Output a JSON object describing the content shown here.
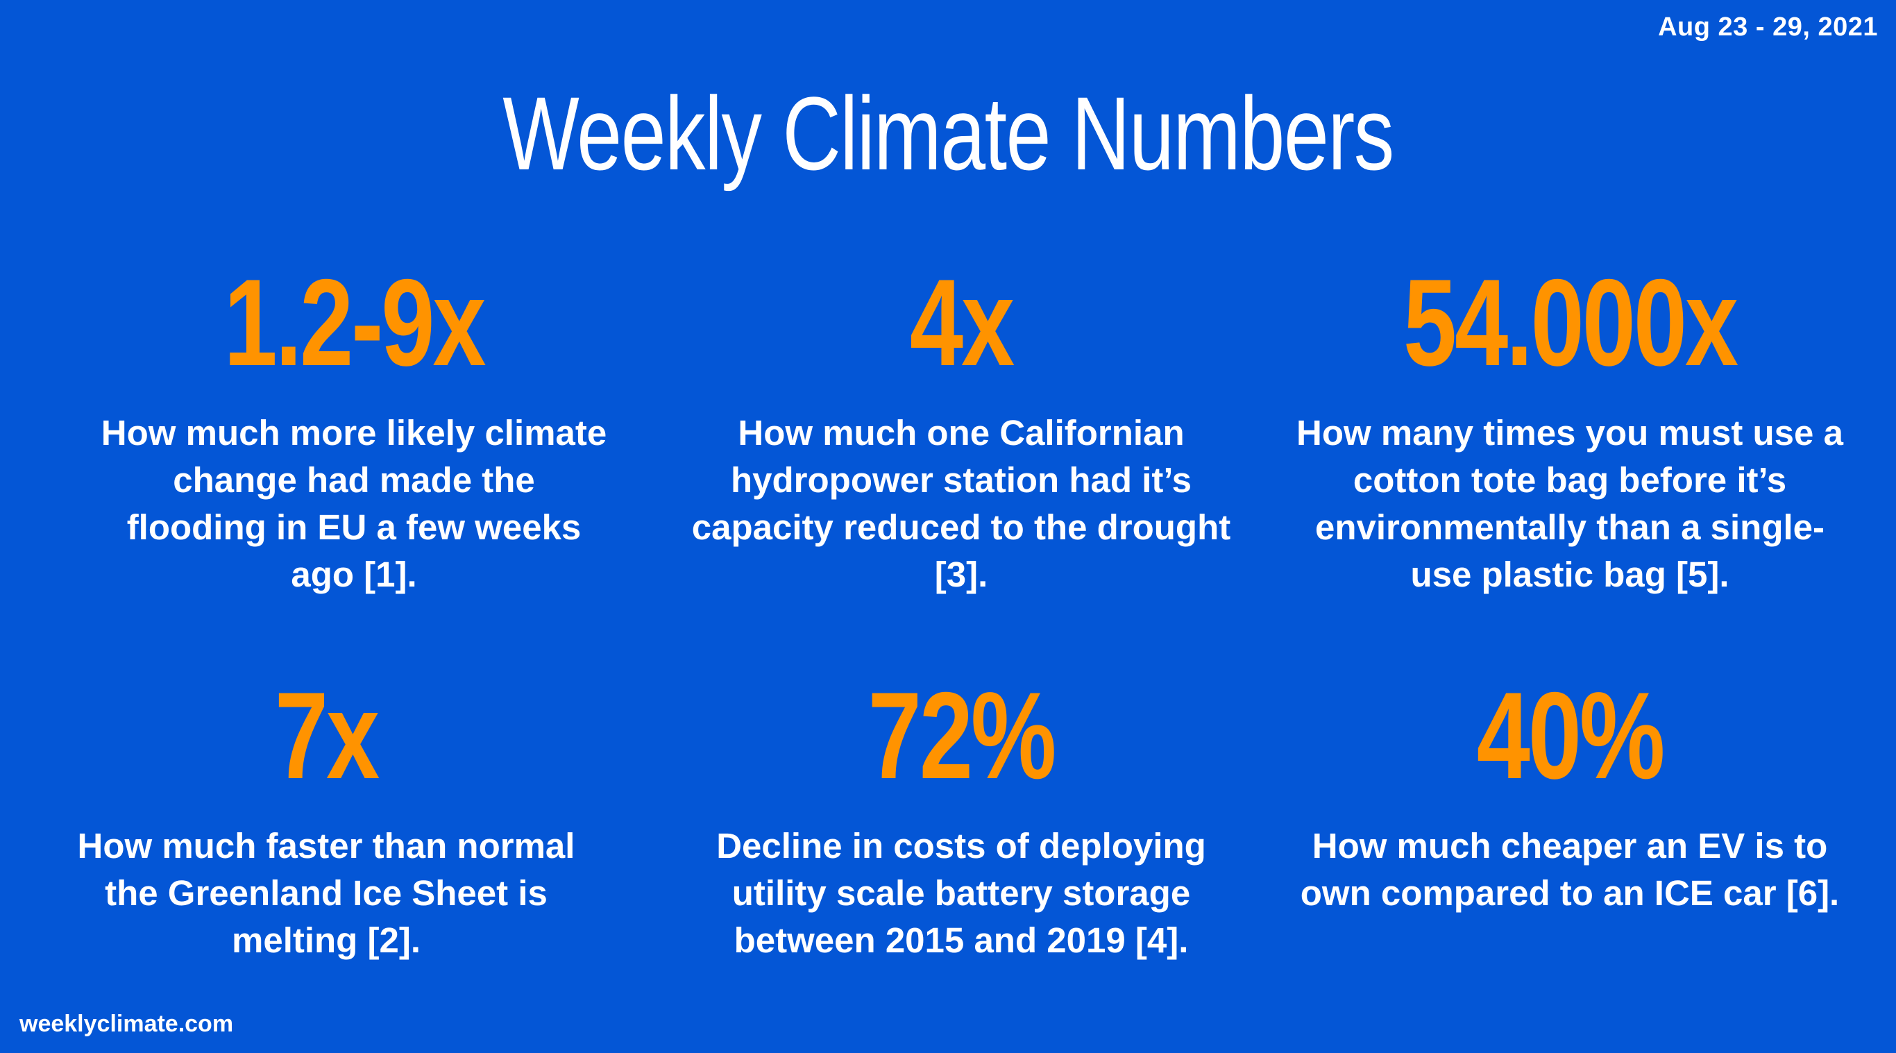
{
  "date_range": "Aug 23 - 29, 2021",
  "title": "Weekly Climate Numbers",
  "stats": [
    {
      "value": "1.2-9x",
      "description": "How much more likely climate change had made the flooding in EU a few weeks ago [1]."
    },
    {
      "value": "4x",
      "description": "How much one Californian hydropower station had it’s capacity reduced to the drought [3]."
    },
    {
      "value": "54.000x",
      "description": "How many times you must use a cotton tote bag before it’s environmentally than a single-use plastic bag [5]."
    },
    {
      "value": "7x",
      "description": "How much faster than normal the Greenland Ice Sheet is melting [2]."
    },
    {
      "value": "72%",
      "description": "Decline in costs of deploying utility scale battery storage between 2015 and 2019 [4]."
    },
    {
      "value": "40%",
      "description": "How much cheaper an EV is to own compared to an ICE car [6]."
    }
  ],
  "footer": "weeklyclimate.com",
  "colors": {
    "background": "#0456D6",
    "accent": "#FF9300",
    "text": "#FFFFFF"
  }
}
